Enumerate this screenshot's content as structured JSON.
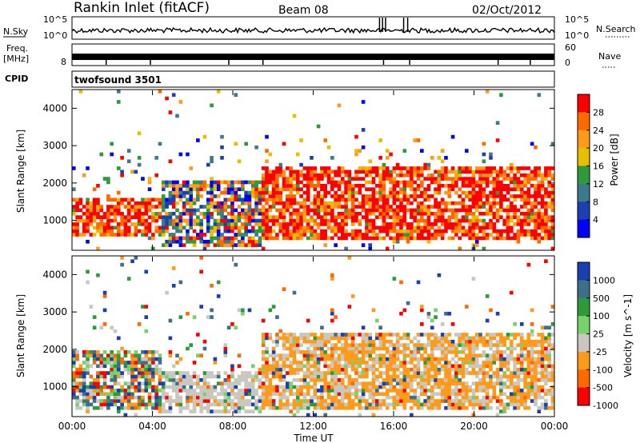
{
  "header": {
    "station": "Rankin Inlet (fitACF)",
    "beam": "Beam 08",
    "date": "02/Oct/2012"
  },
  "top_panels": {
    "nsky_label": "N.Sky",
    "nsky_ticks": [
      "10^5",
      "10^0"
    ],
    "nsearch_label": "N.Search",
    "nsearch_ticks": [
      "10^5",
      "10^0"
    ],
    "freq_label": "Freq.",
    "freq_unit": "[MHz]",
    "freq_ticks": [
      "8"
    ],
    "nave_label": "Nave",
    "nave_ticks": [
      "60",
      "0"
    ],
    "cpid_label": "CPID",
    "cpid_value": "twofsound 3501"
  },
  "chart_data": [
    {
      "type": "heatmap",
      "name": "power",
      "ylabel": "Slant Range [km]",
      "ylim": [
        200,
        4500
      ],
      "y_ticks": [
        1000,
        2000,
        3000,
        4000
      ],
      "colorbar_label": "Power [dB]",
      "colorbar_ticks": [
        "28",
        "24",
        "20",
        "16",
        "12",
        "8",
        "4"
      ],
      "colorbar_colors": [
        "#ff0000",
        "#ff6a00",
        "#ff9a1a",
        "#e6c000",
        "#2e9b3a",
        "#3d7a8a",
        "#1d3fb0",
        "#0000ff"
      ],
      "echo_regions": [
        {
          "t0": 0.0,
          "t1": 4.5,
          "r0": 600,
          "r1": 1600,
          "level": "high"
        },
        {
          "t0": 4.5,
          "t1": 9.5,
          "r0": 300,
          "r1": 2100,
          "level": "mixed"
        },
        {
          "t0": 9.5,
          "t1": 24.0,
          "r0": 500,
          "r1": 2400,
          "level": "high"
        }
      ]
    },
    {
      "type": "heatmap",
      "name": "velocity",
      "ylabel": "Slant Range [km]",
      "ylim": [
        200,
        4500
      ],
      "y_ticks": [
        1000,
        2000,
        3000,
        4000
      ],
      "colorbar_label": "Velocity [m s^-1]",
      "colorbar_ticks": [
        "1000",
        "500",
        "100",
        "25",
        "-25",
        "-100",
        "-500",
        "-1000"
      ],
      "colorbar_colors": [
        "#1a3fb0",
        "#3d6e8a",
        "#2e9b3a",
        "#76d36a",
        "#c8c8c0",
        "#ff9a1a",
        "#ff6a00",
        "#ff0000"
      ],
      "echo_regions": [
        {
          "t0": 0.0,
          "t1": 4.5,
          "r0": 400,
          "r1": 2000,
          "level": "mixed"
        },
        {
          "t0": 4.5,
          "t1": 9.5,
          "r0": 300,
          "r1": 1400,
          "level": "grey"
        },
        {
          "t0": 9.5,
          "t1": 24.0,
          "r0": 400,
          "r1": 2400,
          "level": "orange-grey"
        }
      ]
    }
  ],
  "x_axis": {
    "label": "Time UT",
    "ticks": [
      "00:00",
      "04:00",
      "08:00",
      "12:00",
      "16:00",
      "20:00",
      "00:00"
    ],
    "range_hours": [
      0,
      24
    ]
  }
}
